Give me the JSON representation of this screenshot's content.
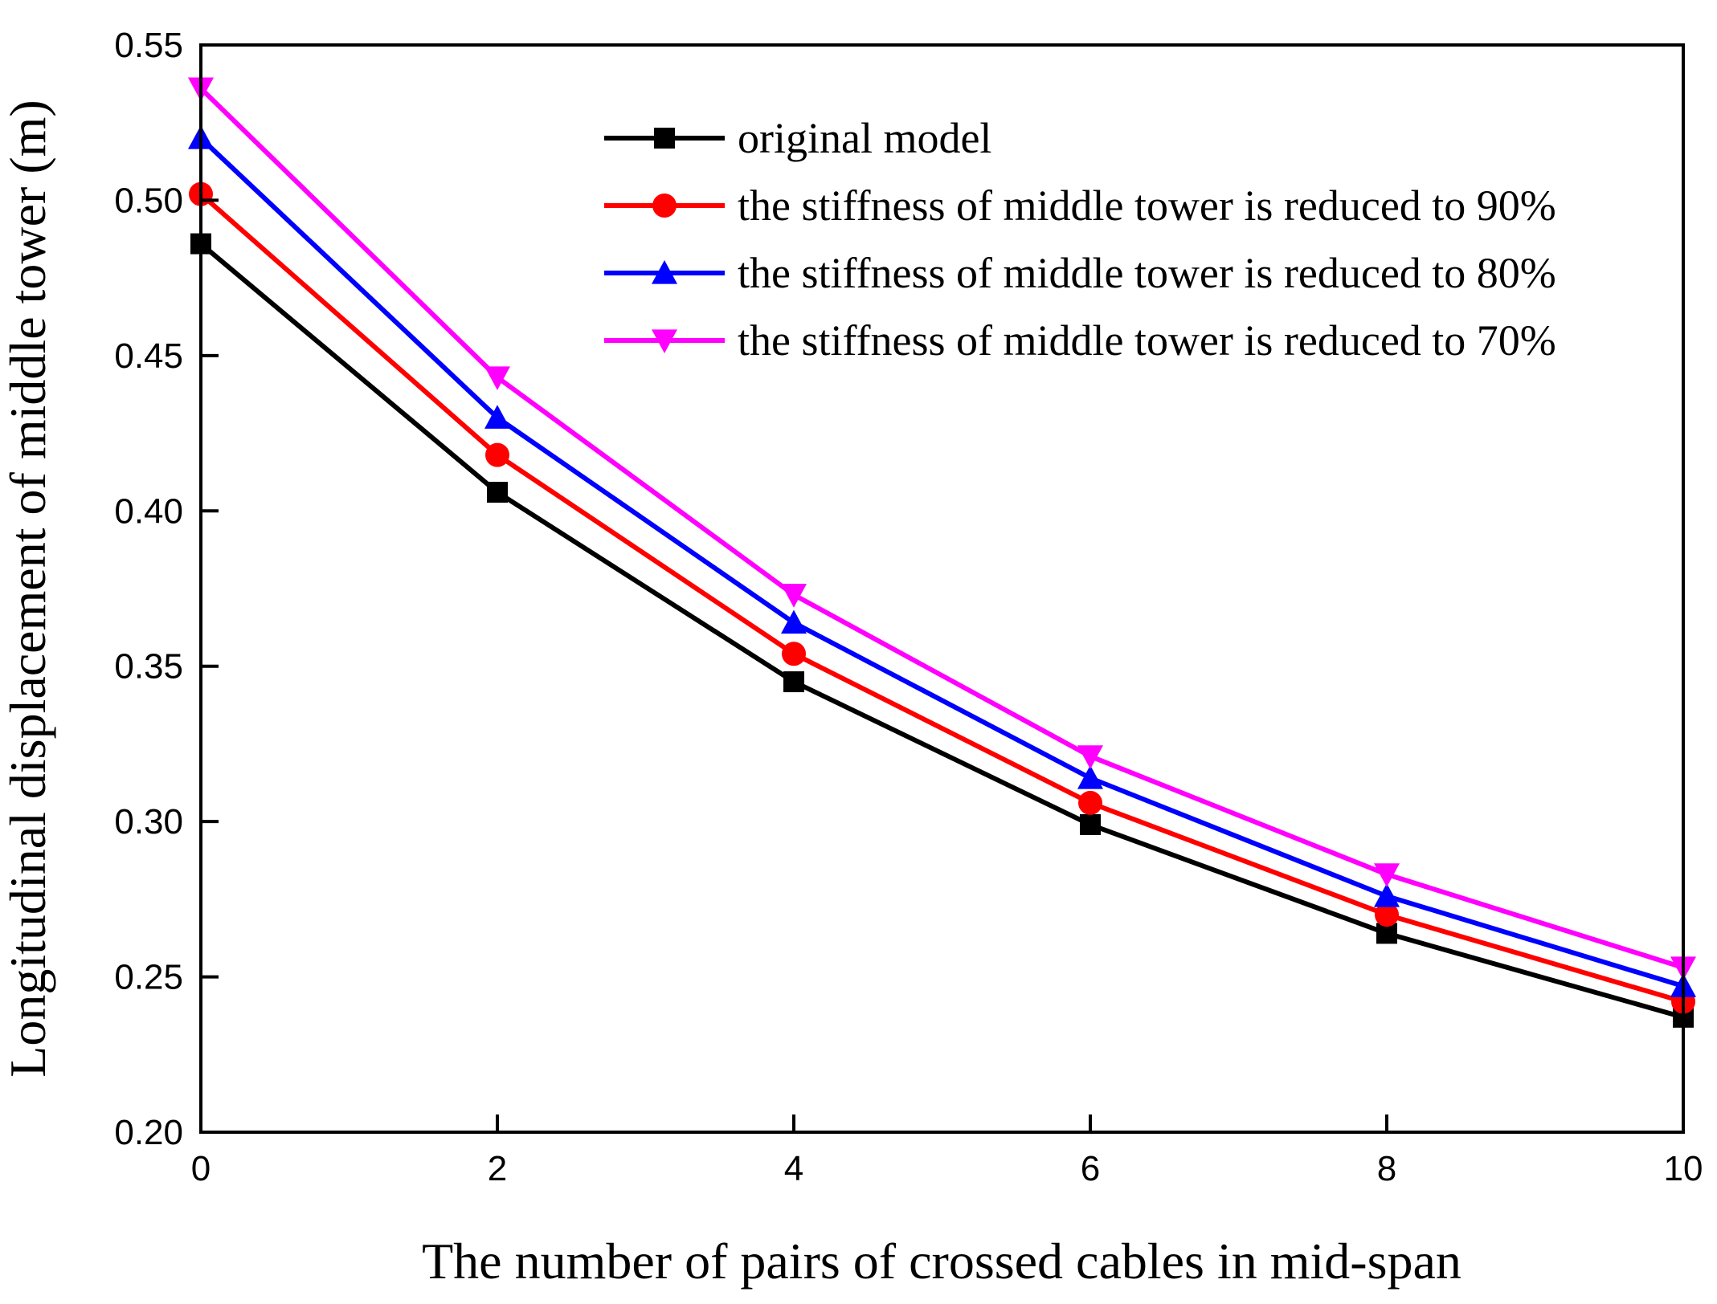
{
  "chart_data": {
    "type": "line",
    "title": "",
    "xlabel": "The number of pairs of crossed cables in mid-span",
    "ylabel": "Longitudinal displacement of middle tower (m)",
    "xlim": [
      0,
      10
    ],
    "ylim": [
      0.2,
      0.55
    ],
    "x_ticks": [
      "0",
      "2",
      "4",
      "6",
      "8",
      "10"
    ],
    "y_ticks": [
      "0.20",
      "0.25",
      "0.30",
      "0.35",
      "0.40",
      "0.45",
      "0.50",
      "0.55"
    ],
    "grid": false,
    "legend_position": "top-right",
    "x": [
      0,
      2,
      4,
      6,
      8,
      10
    ],
    "series": [
      {
        "name": "original model",
        "color": "#000000",
        "marker": "square",
        "values": [
          0.486,
          0.406,
          0.345,
          0.299,
          0.264,
          0.237
        ]
      },
      {
        "name": "the stiffness of middle tower is reduced to 90%",
        "color": "#ff0000",
        "marker": "circle",
        "values": [
          0.502,
          0.418,
          0.354,
          0.306,
          0.27,
          0.242
        ]
      },
      {
        "name": "the stiffness of middle tower is reduced to 80%",
        "color": "#0000ff",
        "marker": "triangle-up",
        "values": [
          0.52,
          0.43,
          0.364,
          0.314,
          0.276,
          0.247
        ]
      },
      {
        "name": "the stiffness of middle tower is reduced to 70%",
        "color": "#ff00ff",
        "marker": "triangle-down",
        "values": [
          0.536,
          0.443,
          0.373,
          0.321,
          0.283,
          0.253
        ]
      }
    ]
  }
}
